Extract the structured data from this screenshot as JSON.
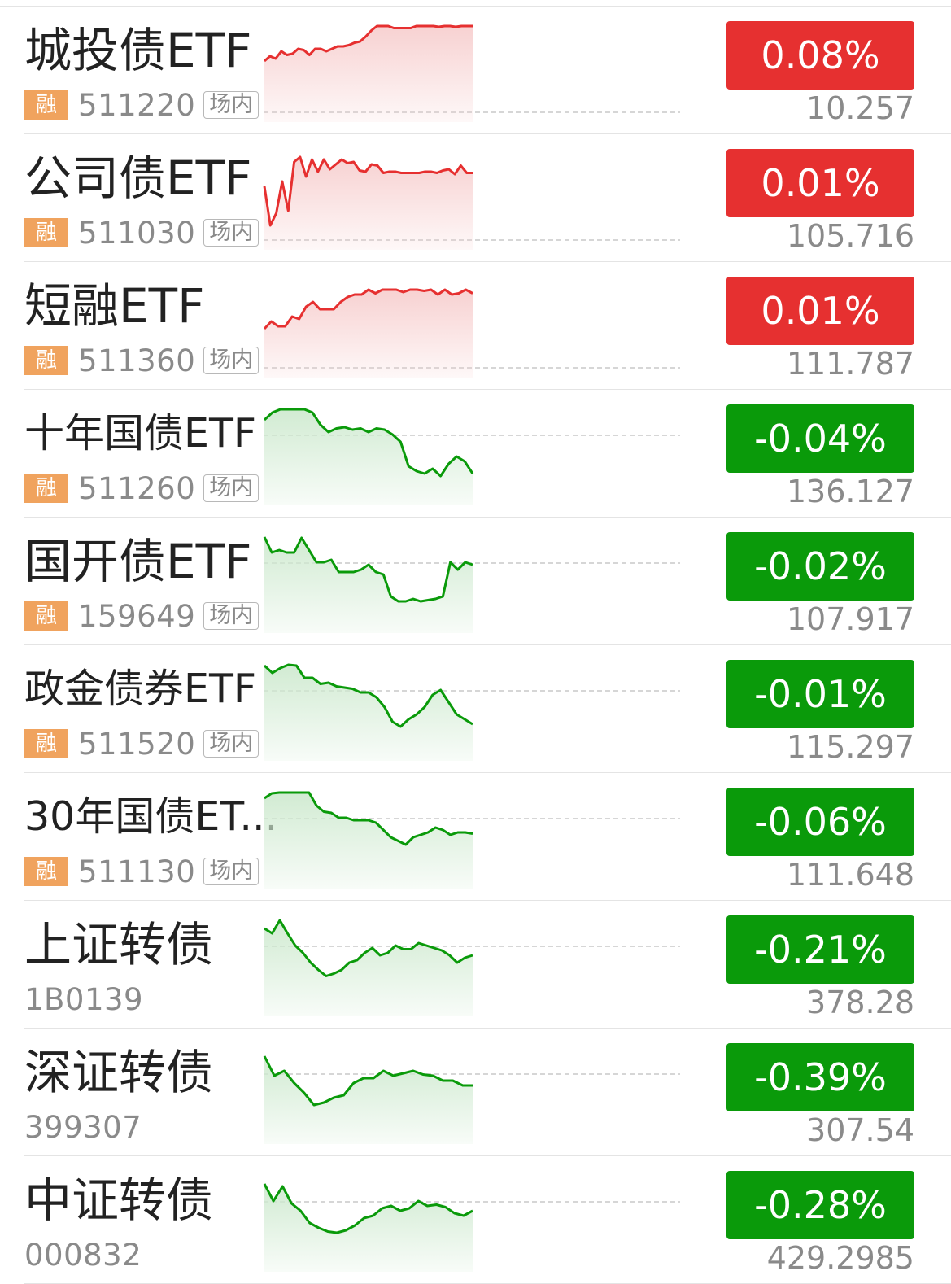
{
  "colors": {
    "up": "#e63030",
    "down": "#0a9a0a",
    "up_fill": "#f7cfcf",
    "down_fill": "#cfead0",
    "badge": "#f0a35e"
  },
  "rows": [
    {
      "name": "城投债ETF",
      "margin": "融",
      "code": "511220",
      "venue": "场内",
      "change": "0.08%",
      "price": "10.257",
      "trend": "up",
      "spark": [
        0.3,
        0.5,
        0.4,
        0.7,
        0.55,
        0.6,
        0.8,
        0.75,
        0.55,
        0.8,
        0.8,
        0.7,
        0.8,
        0.9,
        0.9,
        0.95,
        1.05,
        1.1,
        1.3,
        1.55,
        1.85,
        1.95,
        1.95,
        1.65,
        1.65,
        1.65,
        1.65,
        1.75,
        1.95,
        1.8,
        1.95,
        1.7,
        1.75,
        1.9,
        1.7,
        1.8,
        1.95,
        1.95
      ]
    },
    {
      "name": "公司债ETF",
      "margin": "融",
      "code": "511030",
      "venue": "场内",
      "change": "0.01%",
      "price": "105.716",
      "trend": "up",
      "spark": [
        0.4,
        -1.2,
        -0.7,
        0.6,
        -0.6,
        1.4,
        1.6,
        0.8,
        1.5,
        1.0,
        1.5,
        1.1,
        1.3,
        1.5,
        1.35,
        1.4,
        1.05,
        1.0,
        1.3,
        1.25,
        0.95,
        1.0,
        1.0,
        0.95,
        0.95,
        0.95,
        0.95,
        1.0,
        1.0,
        0.95,
        1.05,
        1.1,
        0.9,
        1.25,
        0.95,
        0.95
      ]
    },
    {
      "name": "短融ETF",
      "margin": "融",
      "code": "511360",
      "venue": "场内",
      "change": "0.01%",
      "price": "111.787",
      "trend": "up",
      "spark": [
        -0.2,
        0.1,
        -0.1,
        -0.1,
        0.3,
        0.2,
        0.7,
        0.9,
        0.6,
        0.6,
        0.6,
        0.9,
        1.1,
        1.2,
        1.2,
        1.4,
        1.25,
        1.4,
        1.4,
        1.4,
        1.3,
        1.4,
        1.4,
        1.35,
        1.4,
        1.2,
        1.4,
        1.2,
        1.25,
        1.4,
        1.25
      ]
    },
    {
      "name": "十年国债ETF",
      "margin": "融",
      "code": "511260",
      "venue": "场内",
      "change": "-0.04%",
      "price": "136.127",
      "trend": "down",
      "spark": [
        1.3,
        1.6,
        2.0,
        2.1,
        1.9,
        1.75,
        1.6,
        1.1,
        0.8,
        0.95,
        1.0,
        0.9,
        0.95,
        0.8,
        0.95,
        0.9,
        0.7,
        0.4,
        -0.6,
        -0.8,
        -0.9,
        -0.7,
        -1.0,
        -0.5,
        -0.2,
        -0.4,
        -0.9
      ]
    },
    {
      "name": "国开债ETF",
      "margin": "融",
      "code": "159649",
      "venue": "场内",
      "change": "-0.02%",
      "price": "107.917",
      "trend": "down",
      "spark": [
        1.9,
        1.1,
        1.2,
        1.1,
        1.1,
        1.7,
        1.2,
        0.7,
        0.7,
        0.8,
        0.3,
        0.3,
        0.3,
        0.4,
        0.6,
        0.3,
        0.2,
        -0.7,
        -0.9,
        -0.9,
        -0.8,
        -0.9,
        -0.85,
        -0.8,
        -0.7,
        0.7,
        0.4,
        0.7,
        0.6
      ]
    },
    {
      "name": "政金债券ETF",
      "margin": "融",
      "code": "511520",
      "venue": "场内",
      "change": "-0.01%",
      "price": "115.297",
      "trend": "down",
      "spark": [
        1.7,
        1.4,
        1.6,
        1.8,
        1.7,
        1.2,
        1.2,
        0.95,
        1.0,
        0.85,
        0.8,
        0.75,
        0.6,
        0.6,
        0.4,
        0.0,
        -0.6,
        -0.8,
        -0.5,
        -0.3,
        0.0,
        0.5,
        0.7,
        0.2,
        -0.3,
        -0.5,
        -0.7
      ]
    },
    {
      "name": "30年国债ETF",
      "display_name": "30年国债ET...",
      "margin": "融",
      "code": "511130",
      "venue": "场内",
      "change": "-0.06%",
      "price": "111.648",
      "trend": "down",
      "spark": [
        1.5,
        1.7,
        2.2,
        2.35,
        2.1,
        2.15,
        2.05,
        1.2,
        0.95,
        0.9,
        0.7,
        0.7,
        0.6,
        0.6,
        0.6,
        0.5,
        0.2,
        -0.1,
        -0.25,
        -0.4,
        -0.1,
        0.0,
        0.1,
        0.3,
        0.2,
        0.0,
        0.1,
        0.1,
        0.05
      ]
    },
    {
      "name": "上证转债",
      "code": "1B0139",
      "change": "-0.21%",
      "price": "378.28",
      "trend": "down",
      "spark": [
        1.4,
        1.2,
        1.9,
        1.2,
        0.7,
        0.4,
        0.0,
        -0.3,
        -0.55,
        -0.45,
        -0.3,
        0.0,
        0.1,
        0.4,
        0.6,
        0.3,
        0.4,
        0.7,
        0.55,
        0.55,
        0.8,
        0.7,
        0.6,
        0.5,
        0.3,
        0.0,
        0.2,
        0.3
      ]
    },
    {
      "name": "深证转债",
      "code": "399307",
      "change": "-0.39%",
      "price": "307.54",
      "trend": "down",
      "spark": [
        1.4,
        0.6,
        0.8,
        0.3,
        -0.1,
        -0.6,
        -0.5,
        -0.3,
        -0.2,
        0.3,
        0.5,
        0.5,
        0.8,
        0.6,
        0.7,
        0.8,
        0.65,
        0.6,
        0.4,
        0.4,
        0.2,
        0.2
      ]
    },
    {
      "name": "中证转债",
      "code": "000832",
      "change": "-0.28%",
      "price": "429.2985",
      "trend": "down",
      "spark": [
        1.4,
        0.7,
        1.3,
        0.6,
        0.3,
        -0.2,
        -0.4,
        -0.55,
        -0.6,
        -0.5,
        -0.3,
        0.0,
        0.1,
        0.4,
        0.5,
        0.3,
        0.4,
        0.7,
        0.5,
        0.55,
        0.45,
        0.2,
        0.1,
        0.3
      ]
    }
  ]
}
